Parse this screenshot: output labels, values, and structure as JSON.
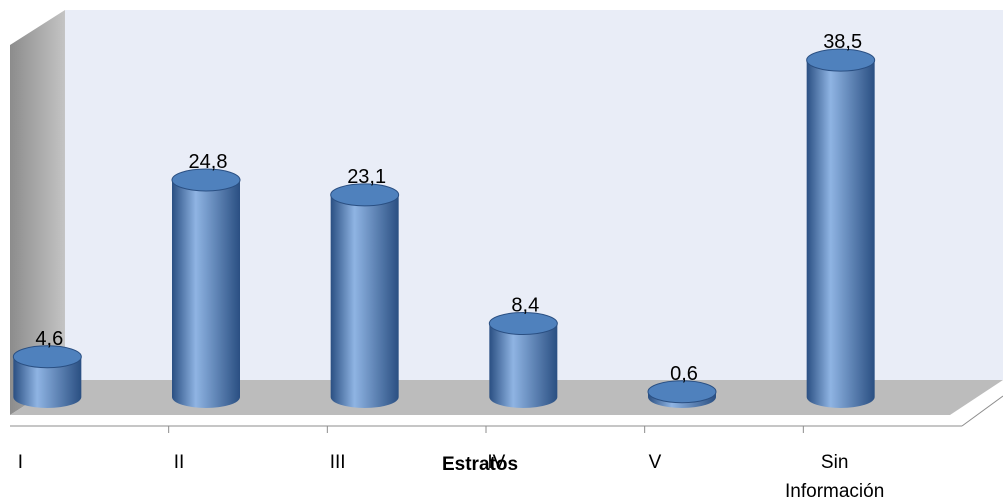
{
  "chart_data": {
    "type": "bar",
    "style": "3d-cylinder",
    "title": "",
    "xlabel": "Estratos",
    "ylabel": "",
    "categories": [
      "I",
      "II",
      "III",
      "IV",
      "V",
      "Sin Información"
    ],
    "category_lines": [
      [
        "I"
      ],
      [
        "II"
      ],
      [
        "III"
      ],
      [
        "IV"
      ],
      [
        "V"
      ],
      [
        "Sin",
        "Información"
      ]
    ],
    "values": [
      4.6,
      24.8,
      23.1,
      8.4,
      0.6,
      38.5
    ],
    "data_labels": [
      "4,6",
      "24,8",
      "23,1",
      "8,4",
      "0,6",
      "38,5"
    ],
    "ylim": [
      0,
      40
    ],
    "grid": false,
    "legend": "none",
    "colors": {
      "bar": "#4f81bd",
      "bar_dark": "#2a4f82",
      "bar_light": "#8fb4e3",
      "wall": "#e9edf7",
      "floor": "#bcbcbc",
      "side_wall": "#a6a6a6"
    }
  }
}
